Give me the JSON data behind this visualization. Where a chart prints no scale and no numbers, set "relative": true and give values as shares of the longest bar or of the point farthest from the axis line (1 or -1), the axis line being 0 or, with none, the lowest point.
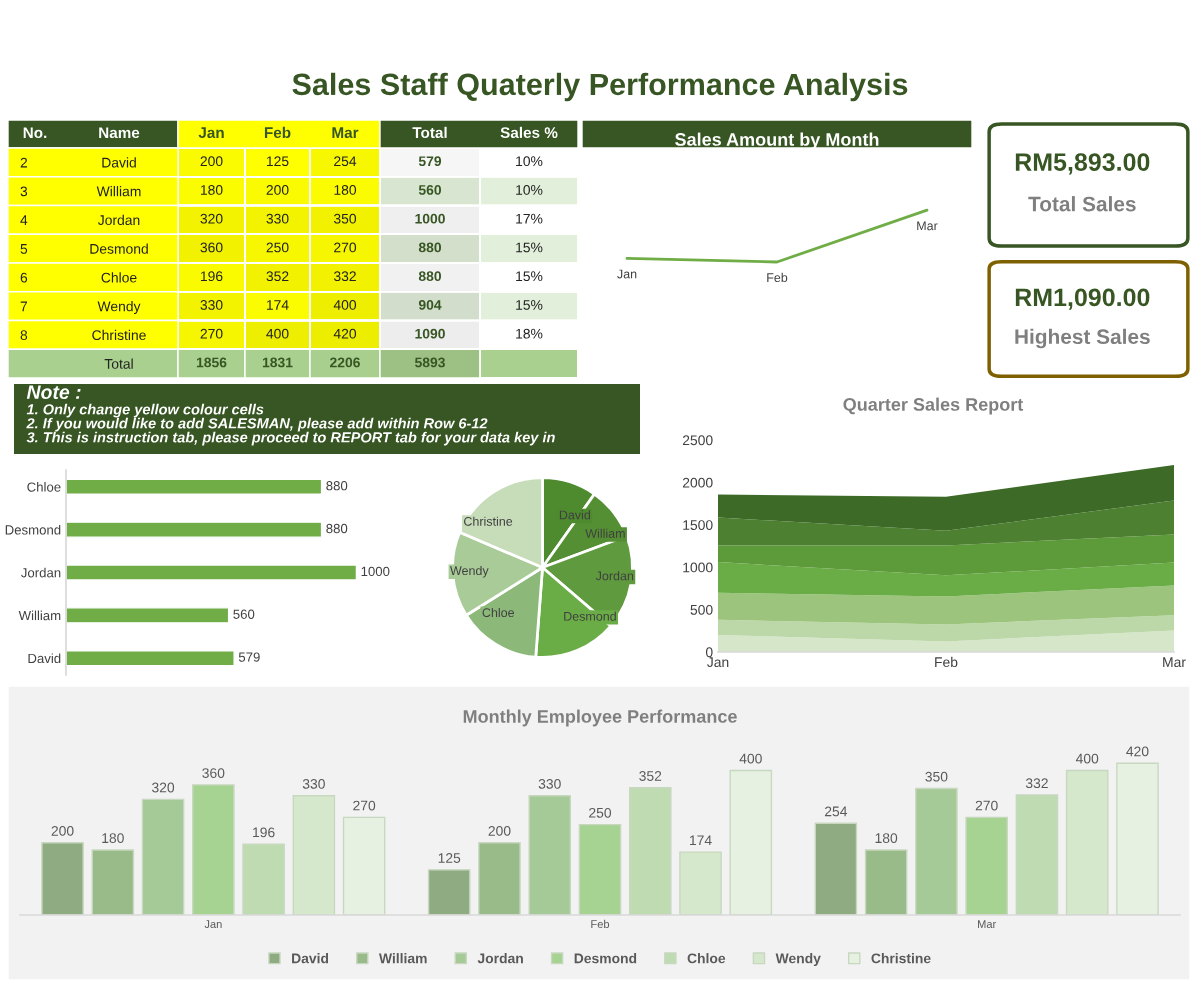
{
  "chart_data": [
    {
      "type": "heatmap",
      "title": "Sales Staff Quaterly Performance Analysis",
      "ylabel": "Name",
      "y2label": "No.",
      "categories": [
        "Jan",
        "Feb",
        "Mar",
        "Total",
        "Sales %"
      ],
      "y_categories": [
        "David",
        "William",
        "Jordan",
        "Desmond",
        "Chloe",
        "Wendy",
        "Christine",
        "Total"
      ],
      "y2_categories": [
        "2",
        "3",
        "4",
        "5",
        "6",
        "7",
        "8",
        null
      ],
      "cells": [
        [
          200,
          125,
          254,
          579,
          10
        ],
        [
          180,
          200,
          180,
          560,
          10
        ],
        [
          320,
          330,
          350,
          1000,
          17
        ],
        [
          360,
          250,
          270,
          880,
          15
        ],
        [
          196,
          352,
          332,
          880,
          15
        ],
        [
          330,
          174,
          400,
          904,
          15
        ],
        [
          270,
          400,
          420,
          1090,
          18
        ],
        [
          1856,
          1831,
          2206,
          5893,
          null
        ]
      ],
      "cell_labels": [
        [
          "200",
          "125",
          "254",
          "579",
          "10%"
        ],
        [
          "180",
          "200",
          "180",
          "560",
          "10%"
        ],
        [
          "320",
          "330",
          "350",
          "1000",
          "17%"
        ],
        [
          "360",
          "250",
          "270",
          "880",
          "15%"
        ],
        [
          "196",
          "352",
          "332",
          "880",
          "15%"
        ],
        [
          "330",
          "174",
          "400",
          "904",
          "15%"
        ],
        [
          "270",
          "400",
          "420",
          "1090",
          "18%"
        ],
        [
          "1856",
          "1831",
          "2206",
          "5893",
          null
        ]
      ]
    },
    {
      "type": "line",
      "title": "Sales Amount by Month",
      "relative": true,
      "categories": [
        "Jan",
        "Feb",
        "Mar"
      ],
      "values": [
        0.07,
        0,
        1
      ],
      "color": "#70ad47",
      "marker": "none"
    },
    {
      "type": "other",
      "annotations": [
        "RM5,893.00",
        "Total Sales"
      ]
    },
    {
      "type": "other",
      "annotations": [
        "RM1,090.00",
        "Highest Sales"
      ]
    },
    {
      "type": "other",
      "title": "Note :",
      "annotations": [
        "1. Only change yellow colour cells",
        "2. If you would like to add SALESMAN, please add within Row 6-12",
        "3. This is instruction tab, please proceed to REPORT tab for your data key in"
      ]
    },
    {
      "type": "bar",
      "orientation": "horizontal",
      "categories": [
        "Chloe",
        "Desmond",
        "Jordan",
        "William",
        "David"
      ],
      "values": [
        880,
        880,
        1000,
        560,
        579
      ],
      "color": "#70ad47",
      "data_labels": true
    },
    {
      "type": "pie",
      "categories": [
        "David",
        "William",
        "Jordan",
        "Desmond",
        "Chloe",
        "Wendy",
        "Christine"
      ],
      "values": [
        9.8,
        9.5,
        17.0,
        14.9,
        14.9,
        15.3,
        18.6
      ],
      "colors": [
        "#4e8a2e",
        "#548f33",
        "#5f9a3e",
        "#6aad47",
        "#8cb97a",
        "#a9cb98",
        "#c7ddb9"
      ]
    },
    {
      "type": "area",
      "stacked": true,
      "title": "Quarter Sales Report",
      "categories": [
        "Jan",
        "Feb",
        "Mar"
      ],
      "ylim": [
        0,
        2500
      ],
      "yticks": [
        0,
        500,
        1000,
        1500,
        2000,
        2500
      ],
      "series": [
        {
          "color": "#d5e6c9",
          "values": [
            200,
            125,
            254
          ]
        },
        {
          "color": "#bcd8a8",
          "values": [
            180,
            200,
            180
          ]
        },
        {
          "color": "#9cc47c",
          "values": [
            320,
            330,
            350
          ]
        },
        {
          "color": "#6aad47",
          "values": [
            360,
            250,
            270
          ]
        },
        {
          "color": "#5c9a3a",
          "values": [
            196,
            352,
            332
          ]
        },
        {
          "color": "#4d8030",
          "values": [
            330,
            174,
            400
          ]
        },
        {
          "color": "#3d6b27",
          "values": [
            270,
            400,
            420
          ]
        }
      ]
    },
    {
      "type": "bar",
      "title": "Monthly Employee Performance",
      "categories": [
        "Jan",
        "Feb",
        "Mar"
      ],
      "data_labels": true,
      "legend": "bottom",
      "series": [
        {
          "name": "David",
          "color": "#8fab82",
          "values": [
            200,
            125,
            254
          ]
        },
        {
          "name": "William",
          "color": "#98bb89",
          "values": [
            180,
            200,
            180
          ]
        },
        {
          "name": "Jordan",
          "color": "#a6c998",
          "values": [
            320,
            330,
            350
          ]
        },
        {
          "name": "Desmond",
          "color": "#a6d392",
          "values": [
            360,
            250,
            270
          ]
        },
        {
          "name": "Chloe",
          "color": "#bfdbb2",
          "values": [
            196,
            352,
            332
          ]
        },
        {
          "name": "Wendy",
          "color": "#d5e8cc",
          "values": [
            330,
            174,
            400
          ]
        },
        {
          "name": "Christine",
          "color": "#e6f1e1",
          "values": [
            270,
            400,
            420
          ]
        }
      ]
    }
  ]
}
